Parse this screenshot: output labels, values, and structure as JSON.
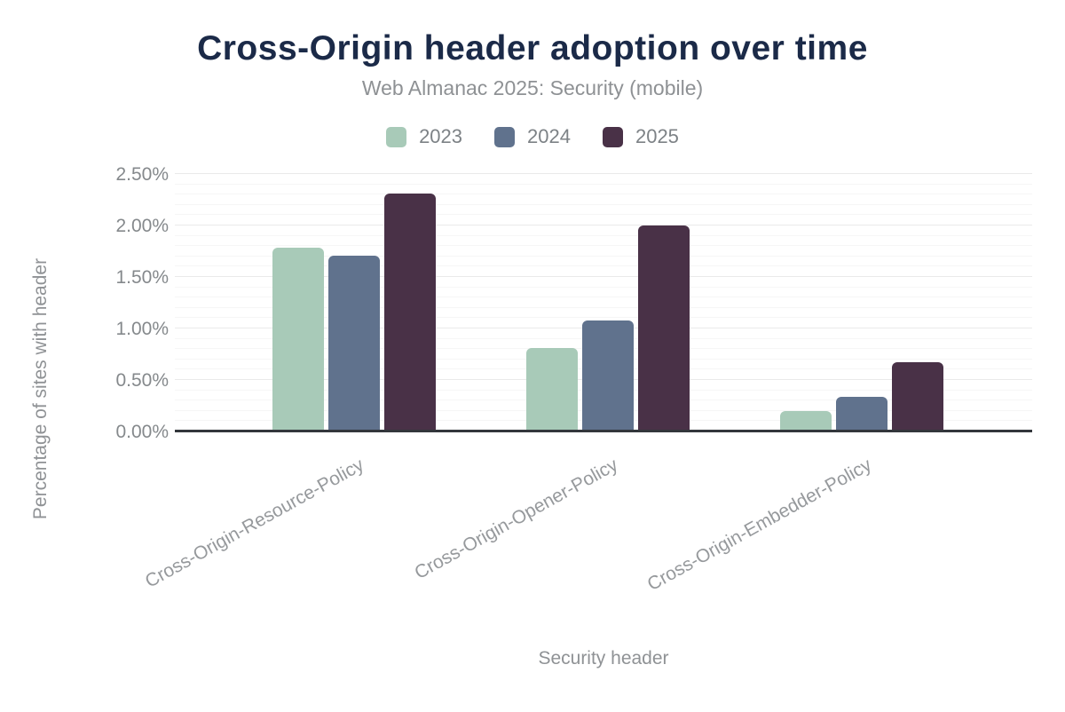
{
  "chart_data": {
    "type": "bar",
    "title": "Cross-Origin header adoption over time",
    "subtitle": "Web Almanac 2025: Security (mobile)",
    "xlabel": "Security header",
    "ylabel": "Percentage of sites with header",
    "categories": [
      "Cross-Origin-Resource-Policy",
      "Cross-Origin-Opener-Policy",
      "Cross-Origin-Embedder-Policy"
    ],
    "series": [
      {
        "name": "2023",
        "color": "#a8cab8",
        "values": [
          1.78,
          0.8,
          0.19
        ]
      },
      {
        "name": "2024",
        "color": "#60728d",
        "values": [
          1.7,
          1.07,
          0.33
        ]
      },
      {
        "name": "2025",
        "color": "#493147",
        "values": [
          2.3,
          1.99,
          0.66
        ]
      }
    ],
    "ylim": [
      0,
      2.5
    ],
    "y_tick_step": 0.5,
    "y_minor_step": 0.1,
    "y_tick_labels": [
      "0.00%",
      "0.50%",
      "1.00%",
      "1.50%",
      "2.00%",
      "2.50%"
    ],
    "grid": "horizontal-minor-and-major",
    "legend_position": "top-center"
  },
  "colors": {
    "title": "#1b2a48",
    "subtitle": "#8e9194",
    "axis_text": "#85898c",
    "category_text": "#96999c",
    "axis_line": "#33373c",
    "grid_minor": "#f6f6f6",
    "grid_major": "#eaeaea",
    "background": "#ffffff"
  }
}
